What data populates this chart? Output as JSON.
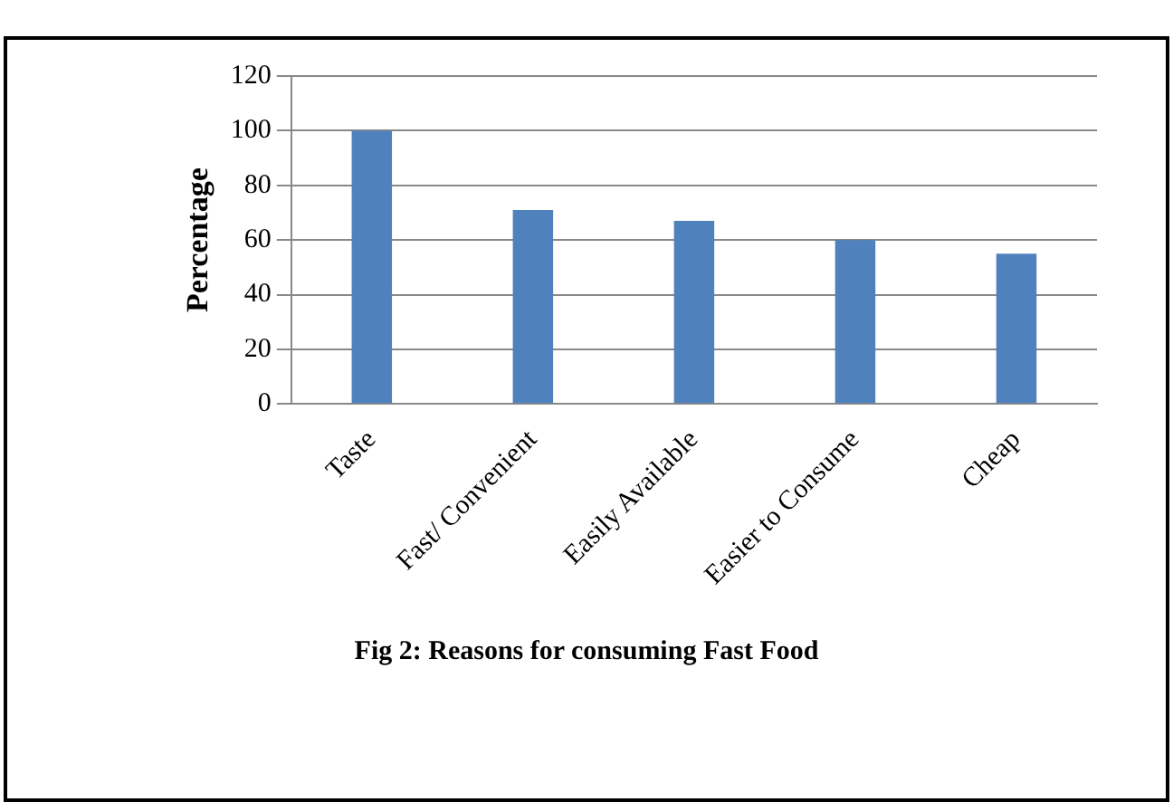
{
  "chart_data": {
    "type": "bar",
    "categories": [
      "Taste",
      "Fast/ Convenient",
      "Easily Available",
      "Easier to Consume",
      "Cheap"
    ],
    "values": [
      100,
      71,
      67,
      60,
      55
    ],
    "color": "#4f81bd",
    "ylabel": "Percentage",
    "ylim": [
      0,
      120
    ],
    "yticks": [
      0,
      20,
      40,
      60,
      80,
      100,
      120
    ],
    "grid": "y",
    "annotations": [
      "Fig 2: Reasons for consuming Fast Food"
    ]
  }
}
